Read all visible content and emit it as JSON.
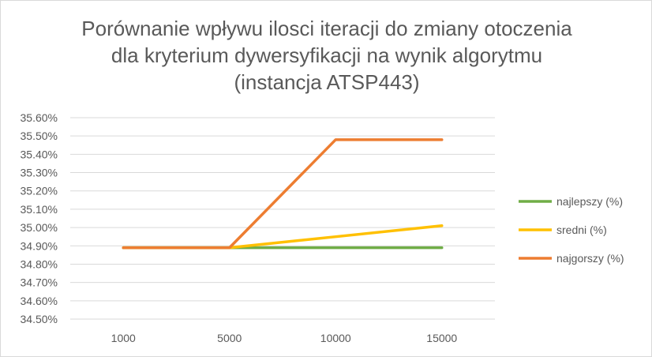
{
  "chart_data": {
    "type": "line",
    "title": "Porównanie wpływu ilosci iteracji do zmiany otoczenia\ndla kryterium dywersyfikacji na wynik algorytmu\n(instancja ATSP443)",
    "xlabel": "",
    "ylabel": "",
    "categories": [
      "1000",
      "5000",
      "10000",
      "15000"
    ],
    "ylim": [
      34.5,
      35.6
    ],
    "ytick_step": 0.1,
    "ytick_labels": [
      "34.50%",
      "34.60%",
      "34.70%",
      "34.80%",
      "34.90%",
      "35.00%",
      "35.10%",
      "35.20%",
      "35.30%",
      "35.40%",
      "35.50%",
      "35.60%"
    ],
    "grid": true,
    "legend_position": "right",
    "series": [
      {
        "name": "najlepszy (%)",
        "values": [
          34.89,
          34.89,
          34.89,
          34.89
        ],
        "color": "#70ad47"
      },
      {
        "name": "sredni (%)",
        "values": [
          34.89,
          34.89,
          34.95,
          35.01
        ],
        "color": "#ffc000"
      },
      {
        "name": "najgorszy (%)",
        "values": [
          34.89,
          34.89,
          35.48,
          35.48
        ],
        "color": "#ed7d31"
      }
    ]
  }
}
